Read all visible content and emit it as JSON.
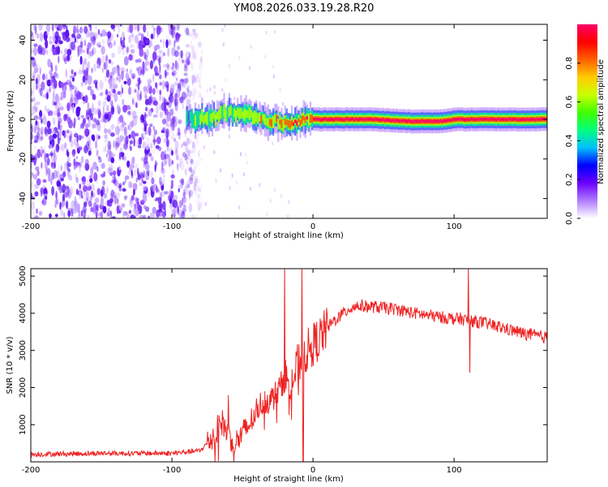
{
  "title": "YM08.2026.033.19.28.R20",
  "chart_data": [
    {
      "type": "heatmap",
      "name": "spectrogram",
      "xlabel": "Height of straight line (km)",
      "ylabel": "Frequency (Hz)",
      "xlim": [
        -200,
        166
      ],
      "ylim": [
        -50,
        48
      ],
      "xticks": [
        "-200",
        "-100",
        "0",
        "100"
      ],
      "xtick_values": [
        -200,
        -100,
        0,
        100
      ],
      "yticks": [
        "-40",
        "-20",
        "0",
        "20",
        "40"
      ],
      "ytick_values": [
        -40,
        -20,
        0,
        20,
        40
      ],
      "noise_region_km": [
        -200,
        -83
      ],
      "signal_band": {
        "start_km": -90,
        "end_km": 166,
        "center_hz": [
          [
            -90,
            0
          ],
          [
            -70,
            1
          ],
          [
            -60,
            4
          ],
          [
            -50,
            2
          ],
          [
            -40,
            1
          ],
          [
            -20,
            -2
          ],
          [
            0,
            0
          ],
          [
            40,
            0
          ],
          [
            70,
            -1
          ],
          [
            90,
            -1
          ],
          [
            100,
            0
          ],
          [
            166,
            0
          ]
        ],
        "peak_amplitude": 1.0
      },
      "colorbar": {
        "label": "Normalized spectral amplitude",
        "range": [
          0,
          1
        ],
        "ticks": [
          "0.0",
          "0.2",
          "0.4",
          "0.6",
          "0.8"
        ],
        "tick_values": [
          0.0,
          0.2,
          0.4,
          0.6,
          0.8
        ],
        "colors": [
          "#ffffff",
          "#b07cff",
          "#6a00ff",
          "#0000ff",
          "#00bfff",
          "#00ff80",
          "#40ff00",
          "#c8ff00",
          "#ffcc00",
          "#ff6000",
          "#ff0000",
          "#ff0066"
        ]
      }
    },
    {
      "type": "line",
      "name": "snr",
      "xlabel": "Height of straight line (km)",
      "ylabel": "SNR (10 * v/v)",
      "xlim": [
        -200,
        166
      ],
      "ylim": [
        0,
        5200
      ],
      "xticks": [
        "-200",
        "-100",
        "0",
        "100"
      ],
      "xtick_values": [
        -200,
        -100,
        0,
        100
      ],
      "yticks": [
        "1000",
        "2000",
        "3000",
        "4000",
        "5000"
      ],
      "ytick_values": [
        1000,
        2000,
        3000,
        4000,
        5000
      ],
      "color": "#ee2222",
      "series": [
        {
          "name": "SNR",
          "x": [
            -200,
            -150,
            -100,
            -80,
            -70,
            -65,
            -60,
            -55,
            -50,
            -45,
            -40,
            -35,
            -30,
            -25,
            -20,
            -15,
            -10,
            -5,
            0,
            5,
            10,
            15,
            20,
            25,
            30,
            40,
            50,
            60,
            70,
            80,
            90,
            100,
            105,
            110,
            115,
            120,
            130,
            140,
            150,
            160,
            166
          ],
          "y": [
            200,
            230,
            230,
            300,
            700,
            1100,
            750,
            500,
            750,
            1000,
            1400,
            1650,
            1650,
            1900,
            2250,
            2100,
            2700,
            2950,
            3150,
            3350,
            3600,
            3800,
            3950,
            4100,
            4200,
            4180,
            4150,
            4100,
            4020,
            3950,
            3900,
            3850,
            3850,
            3800,
            3780,
            3750,
            3650,
            3550,
            3450,
            3380,
            3350
          ],
          "spikes": [
            {
              "x": -60,
              "y": 1800
            },
            {
              "x": -20,
              "y": 5300
            },
            {
              "x": -8,
              "y": 5200
            },
            {
              "x": -7,
              "y": 0
            },
            {
              "x": 110,
              "y": 5200
            },
            {
              "x": 111,
              "y": 2400
            }
          ]
        }
      ]
    }
  ]
}
